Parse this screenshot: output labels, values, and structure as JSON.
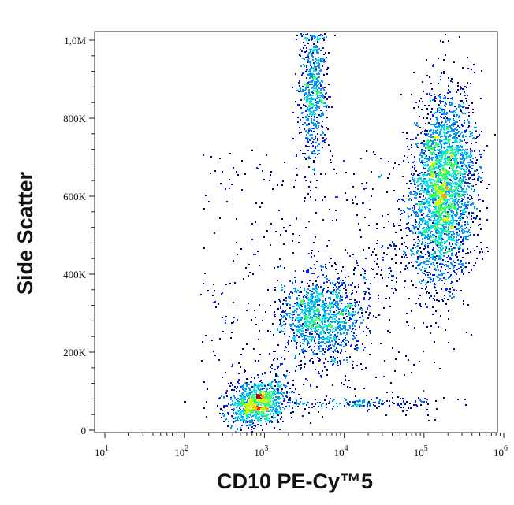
{
  "chart_data": {
    "type": "scatter",
    "xlabel": "CD10 PE-Cy™5",
    "ylabel": "Side Scatter",
    "x_scale": "log",
    "xlim": [
      10,
      1000000
    ],
    "ylim": [
      0,
      1000000
    ],
    "x_ticks": [
      {
        "value": 10,
        "base": "10",
        "exp": "1"
      },
      {
        "value": 100,
        "base": "10",
        "exp": "2"
      },
      {
        "value": 1000,
        "base": "10",
        "exp": "3"
      },
      {
        "value": 10000,
        "base": "10",
        "exp": "4"
      },
      {
        "value": 100000,
        "base": "10",
        "exp": "5"
      },
      {
        "value": 1000000,
        "base": "10",
        "exp": "6"
      }
    ],
    "y_ticks": [
      {
        "value": 0,
        "label": "0"
      },
      {
        "value": 200000,
        "label": "200K"
      },
      {
        "value": 400000,
        "label": "400K"
      },
      {
        "value": 600000,
        "label": "600K"
      },
      {
        "value": 800000,
        "label": "800K"
      },
      {
        "value": 1000000,
        "label": "1,0M"
      }
    ],
    "density_coloring": "pseudocolor (blue = low, red = high)",
    "populations": [
      {
        "cd10": 800,
        "ssc": 70000,
        "points": 900
      },
      {
        "cd10": 5000,
        "ssc": 290000,
        "points": 1100
      },
      {
        "cd10": 170000,
        "ssc": 620000,
        "points": 2800
      },
      {
        "cd10": 4000,
        "ssc": 870000,
        "points": 600
      },
      {
        "cd10": 20000,
        "ssc": 70000,
        "points": 150
      }
    ],
    "colors": [
      "#00007f",
      "#0022ff",
      "#0099ff",
      "#00e5e5",
      "#33ff66",
      "#ccff00",
      "#ffaa00",
      "#ff2a00",
      "#b00000"
    ]
  }
}
